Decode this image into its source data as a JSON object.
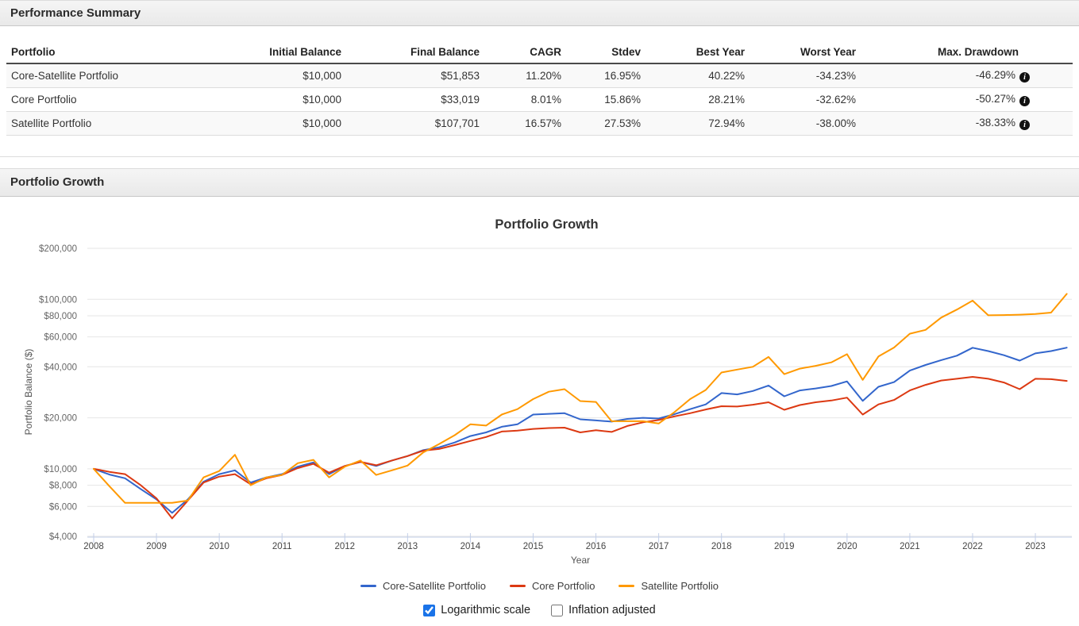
{
  "sections": {
    "summary_title": "Performance Summary",
    "growth_title": "Portfolio Growth"
  },
  "table": {
    "columns": [
      "Portfolio",
      "Initial Balance",
      "Final Balance",
      "CAGR",
      "Stdev",
      "Best Year",
      "Worst Year",
      "Max. Drawdown"
    ],
    "rows": [
      {
        "cells": [
          "Core-Satellite Portfolio",
          "$10,000",
          "$51,853",
          "11.20%",
          "16.95%",
          "40.22%",
          "-34.23%",
          "-46.29%"
        ]
      },
      {
        "cells": [
          "Core Portfolio",
          "$10,000",
          "$33,019",
          "8.01%",
          "15.86%",
          "28.21%",
          "-32.62%",
          "-50.27%"
        ]
      },
      {
        "cells": [
          "Satellite Portfolio",
          "$10,000",
          "$107,701",
          "16.57%",
          "27.53%",
          "72.94%",
          "-38.00%",
          "-38.33%"
        ]
      }
    ]
  },
  "chart_data": {
    "type": "line",
    "title": "Portfolio Growth",
    "xlabel": "Year",
    "ylabel": "Portfolio Balance ($)",
    "y_scale": "log",
    "ylim": [
      4000,
      200000
    ],
    "xlim": [
      2008,
      2023.6
    ],
    "grid": "horizontal",
    "legend_position": "bottom",
    "y_ticks": [
      {
        "value": 200000,
        "label": "$200,000"
      },
      {
        "value": 100000,
        "label": "$100,000"
      },
      {
        "value": 80000,
        "label": "$80,000"
      },
      {
        "value": 60000,
        "label": "$60,000"
      },
      {
        "value": 40000,
        "label": "$40,000"
      },
      {
        "value": 20000,
        "label": "$20,000"
      },
      {
        "value": 10000,
        "label": "$10,000"
      },
      {
        "value": 8000,
        "label": "$8,000"
      },
      {
        "value": 6000,
        "label": "$6,000"
      },
      {
        "value": 4000,
        "label": "$4,000"
      }
    ],
    "x_ticks": [
      {
        "value": 2008,
        "label": "2008"
      },
      {
        "value": 2009,
        "label": "2009"
      },
      {
        "value": 2010,
        "label": "2010"
      },
      {
        "value": 2011,
        "label": "2011"
      },
      {
        "value": 2012,
        "label": "2012"
      },
      {
        "value": 2013,
        "label": "2013"
      },
      {
        "value": 2014,
        "label": "2014"
      },
      {
        "value": 2015,
        "label": "2015"
      },
      {
        "value": 2016,
        "label": "2016"
      },
      {
        "value": 2017,
        "label": "2017"
      },
      {
        "value": 2018,
        "label": "2018"
      },
      {
        "value": 2019,
        "label": "2019"
      },
      {
        "value": 2020,
        "label": "2020"
      },
      {
        "value": 2021,
        "label": "2021"
      },
      {
        "value": 2022,
        "label": "2022"
      },
      {
        "value": 2023,
        "label": "2023"
      }
    ],
    "x": [
      2008.0,
      2008.25,
      2008.5,
      2008.75,
      2009.0,
      2009.25,
      2009.5,
      2009.75,
      2010.0,
      2010.25,
      2010.5,
      2010.75,
      2011.0,
      2011.25,
      2011.5,
      2011.75,
      2012.0,
      2012.25,
      2012.5,
      2012.75,
      2013.0,
      2013.25,
      2013.5,
      2013.75,
      2014.0,
      2014.25,
      2014.5,
      2014.75,
      2015.0,
      2015.25,
      2015.5,
      2015.75,
      2016.0,
      2016.25,
      2016.5,
      2016.75,
      2017.0,
      2017.25,
      2017.5,
      2017.75,
      2018.0,
      2018.25,
      2018.5,
      2018.75,
      2019.0,
      2019.25,
      2019.5,
      2019.75,
      2020.0,
      2020.25,
      2020.5,
      2020.75,
      2021.0,
      2021.25,
      2021.5,
      2021.75,
      2022.0,
      2022.25,
      2022.5,
      2022.75,
      2023.0,
      2023.25,
      2023.5
    ],
    "series": [
      {
        "name": "Core-Satellite Portfolio",
        "color": "#3366CC",
        "values": [
          10000,
          9250,
          8800,
          7600,
          6600,
          5500,
          6600,
          8400,
          9300,
          9800,
          8300,
          8900,
          9300,
          10300,
          10900,
          9300,
          10400,
          11000,
          10400,
          11200,
          11900,
          12900,
          13400,
          14300,
          15600,
          16400,
          17700,
          18300,
          20900,
          21100,
          21300,
          19600,
          19300,
          19000,
          19700,
          20000,
          19800,
          21000,
          22500,
          24000,
          28000,
          27500,
          28800,
          31000,
          26800,
          29000,
          29800,
          30800,
          32800,
          25200,
          30500,
          32500,
          38000,
          41000,
          43800,
          46500,
          51800,
          49500,
          46800,
          43500,
          48000,
          49500,
          51853
        ]
      },
      {
        "name": "Core Portfolio",
        "color": "#DC3912",
        "values": [
          10000,
          9600,
          9300,
          8000,
          6700,
          5100,
          6500,
          8300,
          9000,
          9300,
          8100,
          8800,
          9200,
          10100,
          10700,
          9500,
          10400,
          11000,
          10500,
          11200,
          11900,
          12800,
          13100,
          13800,
          14600,
          15400,
          16600,
          16800,
          17200,
          17400,
          17500,
          16400,
          16900,
          16500,
          17900,
          18800,
          19400,
          20400,
          21300,
          22400,
          23400,
          23300,
          23900,
          24700,
          22300,
          23800,
          24700,
          25300,
          26300,
          20900,
          24000,
          25500,
          29000,
          31300,
          33200,
          34000,
          34900,
          34000,
          32300,
          29500,
          34000,
          33800,
          33019
        ]
      },
      {
        "name": "Satellite Portfolio",
        "color": "#FF9900",
        "values": [
          10000,
          7900,
          6300,
          6300,
          6300,
          6300,
          6500,
          8900,
          9700,
          12100,
          8000,
          8900,
          9200,
          10800,
          11300,
          8900,
          10300,
          11200,
          9200,
          9800,
          10450,
          12500,
          14000,
          15800,
          18300,
          18000,
          20900,
          22500,
          25800,
          28500,
          29500,
          25100,
          24800,
          19100,
          19100,
          19100,
          18500,
          21600,
          25800,
          29200,
          37000,
          38500,
          40000,
          45700,
          36200,
          39000,
          40500,
          42500,
          47500,
          33500,
          46000,
          52000,
          62700,
          66000,
          78000,
          87000,
          98300,
          80500,
          80800,
          81200,
          82000,
          83500,
          107701
        ]
      }
    ]
  },
  "controls": {
    "logarithmic_scale": {
      "label": "Logarithmic scale",
      "checked": true
    },
    "inflation_adjusted": {
      "label": "Inflation adjusted",
      "checked": false
    }
  },
  "colors": {
    "gridline": "#e6e6e6",
    "baseline": "#c3cfe8",
    "stripe": "#f9f9f9"
  }
}
